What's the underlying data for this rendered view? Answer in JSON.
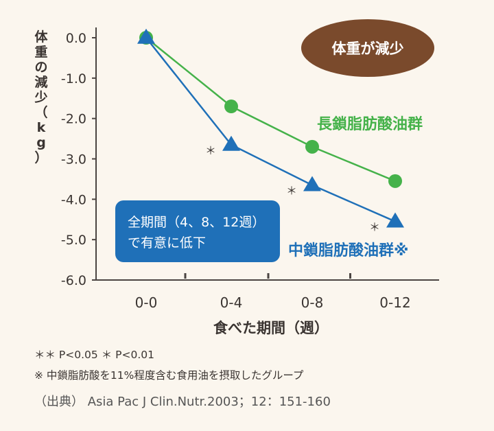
{
  "chart_data": {
    "type": "line",
    "categories": [
      "0-0",
      "0-4",
      "0-8",
      "0-12"
    ],
    "ylabel": "体重の減少（kg）",
    "xlabel": "食べた期間（週）",
    "ylim": [
      -6.0,
      0.0
    ],
    "yticks": [
      "0.0",
      "-1.0",
      "-2.0",
      "-3.0",
      "-4.0",
      "-5.0",
      "-6.0"
    ],
    "series": [
      {
        "name": "長鎖脂肪酸油群",
        "color": "#45b24a",
        "marker": "circle",
        "values": [
          0.0,
          -1.7,
          -2.7,
          -3.55
        ]
      },
      {
        "name": "中鎖脂肪酸油群※",
        "color": "#1f70b8",
        "marker": "triangle",
        "values": [
          0.0,
          -2.65,
          -3.65,
          -4.55
        ]
      }
    ],
    "significance_marks": [
      {
        "series": 1,
        "index": 1,
        "text": "＊"
      },
      {
        "series": 1,
        "index": 2,
        "text": "＊"
      },
      {
        "series": 1,
        "index": 3,
        "text": "＊"
      }
    ],
    "badge": {
      "text": "体重が減少",
      "color": "#7a4a2c"
    },
    "callout": {
      "lines": [
        "全期間（4、8、12週）",
        "で有意に低下"
      ],
      "color": "#1f70b8"
    },
    "grid": false
  },
  "notes": {
    "significance": "＊＊ P<0.05  ＊ P<0.01",
    "footnote": "※ 中鎖脂肪酸を11%程度含む食用油を摂取したグループ",
    "source": "（出典） Asia Pac J Clin.Nutr.2003；12：151-160"
  }
}
